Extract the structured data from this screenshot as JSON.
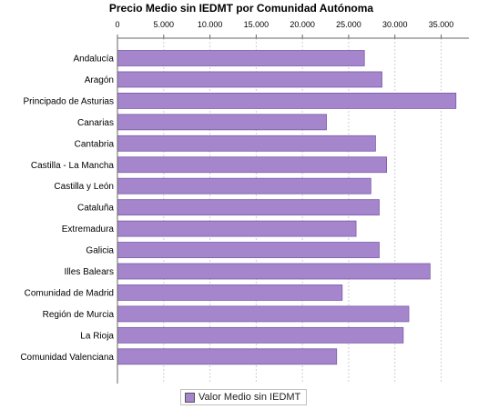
{
  "colors": {
    "bar": "#a585cc",
    "bar_stroke": "#7a5aa8",
    "grid": "#cfcfcf",
    "axis": "#666666"
  },
  "chart_data": {
    "type": "bar",
    "orientation": "horizontal",
    "title": "Precio Medio sin IEDMT por Comunidad Autónoma",
    "xlabel": "",
    "ylabel": "",
    "xlim": [
      0,
      38000
    ],
    "ticks": [
      0,
      5000,
      10000,
      15000,
      20000,
      25000,
      30000,
      35000
    ],
    "tick_labels": [
      "0",
      "5.000",
      "10.000",
      "15.000",
      "20.000",
      "25.000",
      "30.000",
      "35.000"
    ],
    "grid": true,
    "legend_position": "bottom",
    "categories": [
      "Andalucía",
      "Aragón",
      "Principado de Asturias",
      "Canarias",
      "Cantabria",
      "Castilla - La Mancha",
      "Castilla y León",
      "Cataluña",
      "Extremadura",
      "Galicia",
      "Illes Balears",
      "Comunidad de Madrid",
      "Región de Murcia",
      "La Rioja",
      "Comunidad Valenciana"
    ],
    "series": [
      {
        "name": "Valor Medio sin IEDMT",
        "values": [
          26700,
          28600,
          36600,
          22600,
          27900,
          29100,
          27400,
          28300,
          25800,
          28300,
          33800,
          24300,
          31500,
          30900,
          23700
        ]
      }
    ]
  }
}
